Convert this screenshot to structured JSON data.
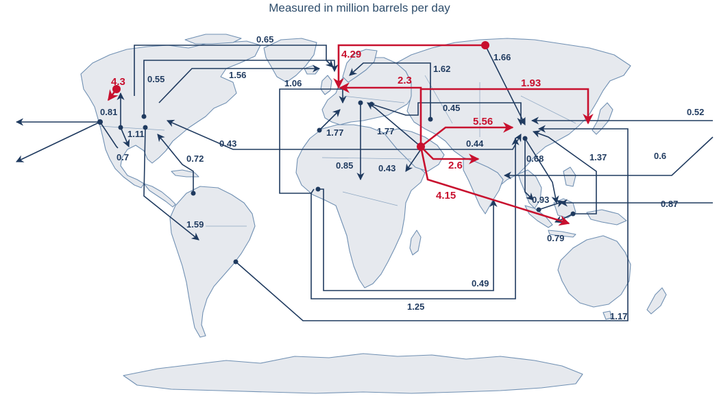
{
  "subtitle": "Measured in million barrels per day",
  "colors": {
    "major_flow": "#c8102e",
    "minor_flow": "#1f3a5f",
    "land": "#e6e9ee",
    "coast": "#6f8fb2",
    "title": "#2e4d6b"
  },
  "flow_values": [
    {
      "id": "f-0-65",
      "value": "0.65",
      "major": false
    },
    {
      "id": "f-4-29",
      "value": "4.29",
      "major": true
    },
    {
      "id": "f-1-66",
      "value": "1.66",
      "major": false
    },
    {
      "id": "f-0-55",
      "value": "0.55",
      "major": false
    },
    {
      "id": "f-1-56",
      "value": "1.56",
      "major": false
    },
    {
      "id": "f-1-62",
      "value": "1.62",
      "major": false
    },
    {
      "id": "f-4-3",
      "value": "4.3",
      "major": true
    },
    {
      "id": "f-1-06",
      "value": "1.06",
      "major": false
    },
    {
      "id": "f-2-3",
      "value": "2.3",
      "major": true
    },
    {
      "id": "f-1-93",
      "value": "1.93",
      "major": true
    },
    {
      "id": "f-0-81",
      "value": "0.81",
      "major": false
    },
    {
      "id": "f-1-11",
      "value": "1.11",
      "major": false
    },
    {
      "id": "f-0-45",
      "value": "0.45",
      "major": false
    },
    {
      "id": "f-1-77a",
      "value": "1.77",
      "major": false
    },
    {
      "id": "f-1-77b",
      "value": "1.77",
      "major": false
    },
    {
      "id": "f-5-56",
      "value": "5.56",
      "major": true
    },
    {
      "id": "f-0-52",
      "value": "0.52",
      "major": false
    },
    {
      "id": "f-0-43a",
      "value": "0.43",
      "major": false
    },
    {
      "id": "f-0-44",
      "value": "0.44",
      "major": false
    },
    {
      "id": "f-0-7",
      "value": "0.7",
      "major": false
    },
    {
      "id": "f-0-72",
      "value": "0.72",
      "major": false
    },
    {
      "id": "f-0-85",
      "value": "0.85",
      "major": false
    },
    {
      "id": "f-0-43b",
      "value": "0.43",
      "major": false
    },
    {
      "id": "f-2-6",
      "value": "2.6",
      "major": true
    },
    {
      "id": "f-0-68",
      "value": "0.68",
      "major": false
    },
    {
      "id": "f-1-37",
      "value": "1.37",
      "major": false
    },
    {
      "id": "f-0-6",
      "value": "0.6",
      "major": false
    },
    {
      "id": "f-4-15",
      "value": "4.15",
      "major": true
    },
    {
      "id": "f-0-93",
      "value": "0.93",
      "major": false
    },
    {
      "id": "f-0-87",
      "value": "0.87",
      "major": false
    },
    {
      "id": "f-1-59",
      "value": "1.59",
      "major": false
    },
    {
      "id": "f-0-79",
      "value": "0.79",
      "major": false
    },
    {
      "id": "f-0-49",
      "value": "0.49",
      "major": false
    },
    {
      "id": "f-1-25",
      "value": "1.25",
      "major": false
    },
    {
      "id": "f-1-17",
      "value": "1.17",
      "major": false
    }
  ]
}
